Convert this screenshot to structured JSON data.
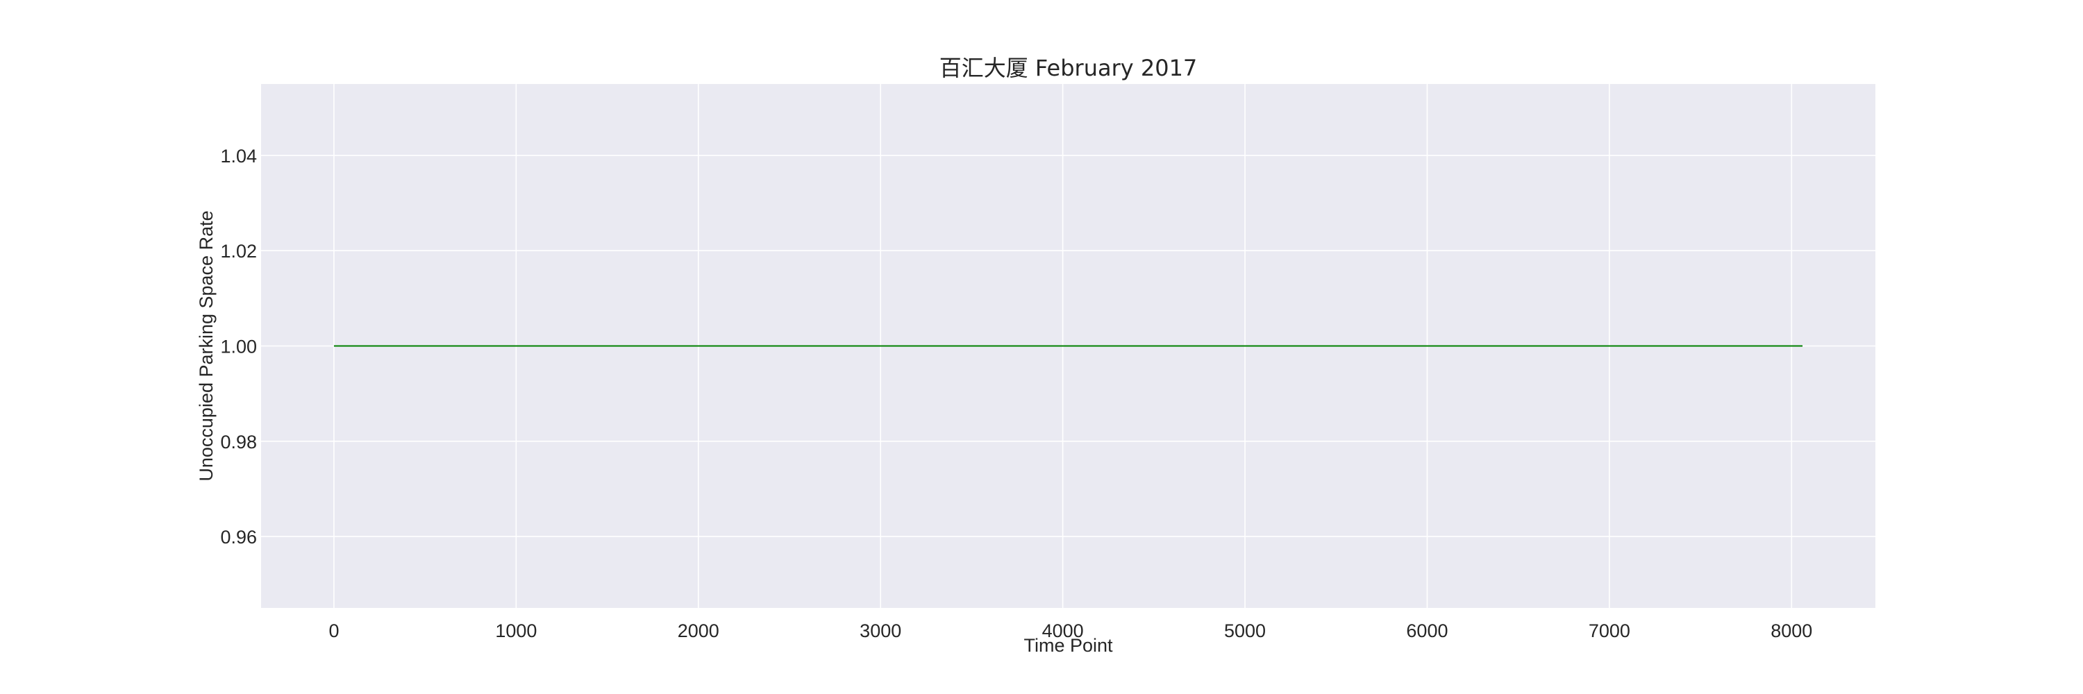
{
  "chart_data": {
    "type": "line",
    "title": "百汇大厦 February 2017",
    "xlabel": "Time Point",
    "ylabel": "Unoccupied Parking Space Rate",
    "xlim": [
      -400,
      8460
    ],
    "ylim": [
      0.945,
      1.055
    ],
    "xticks": [
      0,
      1000,
      2000,
      3000,
      4000,
      5000,
      6000,
      7000,
      8000
    ],
    "xtick_labels": [
      "0",
      "1000",
      "2000",
      "3000",
      "4000",
      "5000",
      "6000",
      "7000",
      "8000"
    ],
    "yticks": [
      0.96,
      0.98,
      1.0,
      1.02,
      1.04
    ],
    "ytick_labels": [
      "0.96",
      "0.98",
      "1.00",
      "1.02",
      "1.04"
    ],
    "grid": true,
    "series": [
      {
        "color": "#008000",
        "x": [
          0,
          8060
        ],
        "y": [
          1.0,
          1.0
        ]
      }
    ]
  },
  "colors": {
    "plot_background": "#EAEAF2",
    "grid": "#FFFFFF",
    "text": "#262626",
    "line": "#008000"
  }
}
